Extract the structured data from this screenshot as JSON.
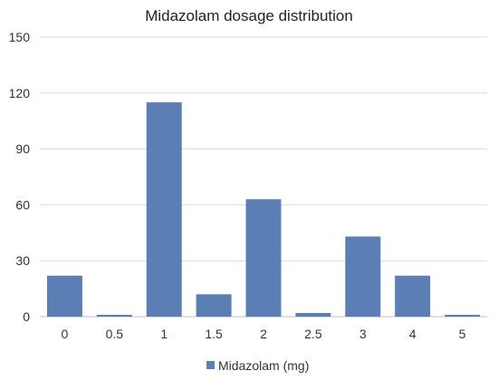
{
  "chart_data": {
    "type": "bar",
    "title": "Midazolam dosage distribution",
    "xlabel": "",
    "ylabel": "",
    "categories": [
      "0",
      "0.5",
      "1",
      "1.5",
      "2",
      "2.5",
      "3",
      "4",
      "5"
    ],
    "series": [
      {
        "name": "Midazolam (mg)",
        "values": [
          22,
          1,
          115,
          12,
          63,
          2,
          43,
          22,
          1
        ]
      }
    ],
    "ylim": [
      0,
      150
    ],
    "yticks": [
      "0",
      "30",
      "60",
      "90",
      "120",
      "150"
    ],
    "grid": true,
    "legend_position": "bottom",
    "bar_color": "#5b7fb5",
    "grid_color": "#d9d9d9"
  }
}
